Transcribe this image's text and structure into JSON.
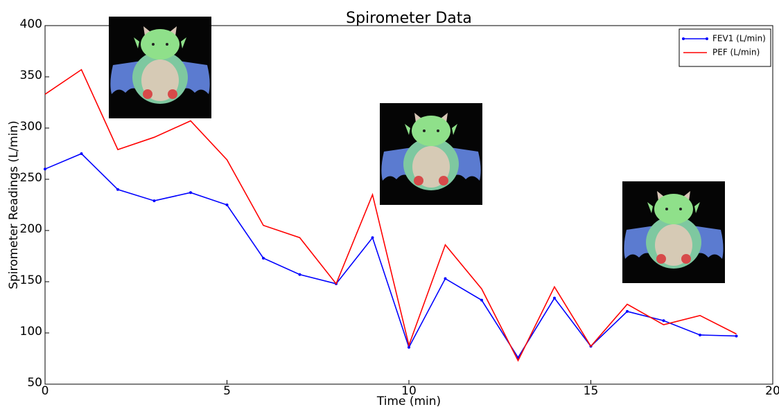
{
  "chart_data": {
    "type": "line",
    "title": "Spirometer Data",
    "x_label": "Time (min)",
    "y_label": "Spirometer Readings (L/min)",
    "x": [
      0,
      1,
      2,
      3,
      4,
      5,
      6,
      7,
      8,
      9,
      10,
      11,
      12,
      13,
      14,
      15,
      16,
      17,
      18,
      19
    ],
    "series": [
      {
        "name": "FEV1 (L/min)",
        "color": "#0000ff",
        "marker": true,
        "values": [
          260,
          275,
          240,
          229,
          237,
          225,
          173,
          157,
          148,
          193,
          86,
          153,
          132,
          76,
          134,
          87,
          121,
          112,
          98,
          97
        ]
      },
      {
        "name": "PEF (L/min)",
        "color": "#ff0000",
        "marker": false,
        "values": [
          333,
          357,
          279,
          291,
          307,
          269,
          205,
          193,
          148,
          235,
          88,
          186,
          143,
          73,
          145,
          87,
          128,
          108,
          117,
          99
        ]
      }
    ],
    "xlim": [
      0,
      20
    ],
    "xticks": [
      0,
      5,
      10,
      15,
      20
    ],
    "ylim": [
      50,
      400
    ],
    "yticks": [
      50,
      100,
      150,
      200,
      250,
      300,
      350,
      400
    ],
    "grid": false,
    "legend": "upper right"
  }
}
